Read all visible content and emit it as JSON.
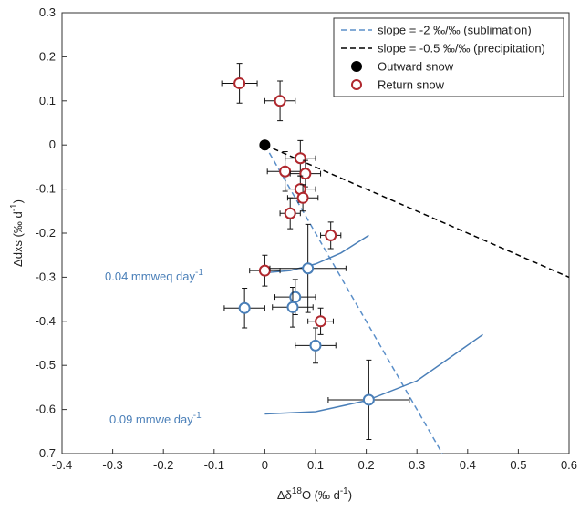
{
  "chart_data": {
    "type": "scatter",
    "xlabel": {
      "text": "Δδ",
      "sup": "18",
      "end": "O (‰ d",
      "sup2": "-1",
      "end2": ")"
    },
    "ylabel": {
      "text": "Δdxs (‰ d",
      "sup": "-1",
      "end": ")"
    },
    "xlim": [
      -0.4,
      0.6
    ],
    "ylim": [
      -0.7,
      0.3
    ],
    "xticks": [
      -0.4,
      -0.3,
      -0.2,
      -0.1,
      0,
      0.1,
      0.2,
      0.3,
      0.4,
      0.5,
      0.6
    ],
    "yticks": [
      -0.7,
      -0.6,
      -0.5,
      -0.4,
      -0.3,
      -0.2,
      -0.1,
      0,
      0.1,
      0.2,
      0.3
    ],
    "legend": "upper right",
    "annotations": [
      {
        "text": "0.04 mmweq day",
        "sup": "-1",
        "color": "#4a7fb8"
      },
      {
        "text": "0.09 mmwe day",
        "sup": "-1",
        "color": "#4a7fb8"
      }
    ],
    "series": [
      {
        "name": "slope = -2 ‰/‰ (sublimation)",
        "kind": "dashed",
        "color": "#5b8fc9",
        "x": [
          0,
          0.35
        ],
        "values": [
          0,
          -0.7
        ]
      },
      {
        "name": "slope = -0.5 ‰/‰ (precipitation)",
        "kind": "dashed",
        "color": "#000000",
        "x": [
          0,
          0.6
        ],
        "values": [
          0,
          -0.3
        ]
      },
      {
        "name": "Outward snow",
        "kind": "filled",
        "color": "#000000",
        "x": [
          0
        ],
        "values": [
          0
        ]
      },
      {
        "name": "Return snow",
        "kind": "hollow",
        "color": "#b0282e",
        "x": [
          -0.05,
          0.03,
          0.07,
          0.04,
          0.08,
          0.07,
          0.075,
          0.05,
          0.13,
          0,
          0.11
        ],
        "values": [
          0.14,
          0.1,
          -0.03,
          -0.06,
          -0.065,
          -0.1,
          -0.12,
          -0.155,
          -0.205,
          -0.285,
          -0.4
        ],
        "xerr": [
          0.035,
          0.03,
          0.03,
          0.035,
          0.03,
          0.03,
          0.03,
          0.02,
          0.02,
          0.03,
          0.025
        ],
        "yerr": [
          0.045,
          0.045,
          0.04,
          0.045,
          0.03,
          0.03,
          0.03,
          0.035,
          0.03,
          0.035,
          0.03
        ]
      },
      {
        "kind": "hollow",
        "color": "#4a7fb8",
        "x": [
          0.085,
          -0.04,
          0.06,
          0.055,
          0.1,
          0.205
        ],
        "values": [
          -0.28,
          -0.37,
          -0.345,
          -0.368,
          -0.455,
          -0.578
        ],
        "xerr": [
          0.075,
          0.04,
          0.04,
          0.04,
          0.04,
          0.08
        ],
        "yerr": [
          0.1,
          0.045,
          0.04,
          0.045,
          0.04,
          0.09
        ]
      },
      {
        "kind": "solid",
        "color": "#4a7fb8",
        "x": [
          0,
          0.05,
          0.1,
          0.15,
          0.205
        ],
        "values": [
          -0.29,
          -0.285,
          -0.27,
          -0.245,
          -0.205
        ]
      },
      {
        "kind": "solid",
        "color": "#4a7fb8",
        "x": [
          0,
          0.1,
          0.2,
          0.3,
          0.43
        ],
        "values": [
          -0.61,
          -0.605,
          -0.58,
          -0.535,
          -0.43
        ]
      }
    ]
  }
}
